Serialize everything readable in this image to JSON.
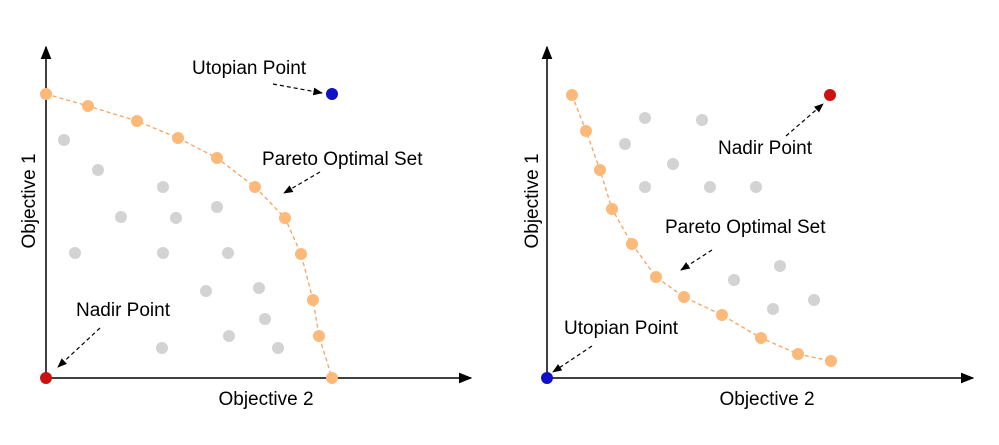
{
  "colors": {
    "axis": "#000000",
    "pareto": "#FDB97A",
    "pareto_line": "#F7A35C",
    "dominated": "#D3D3D3",
    "utopian": "#1010C8",
    "nadir": "#CC1111",
    "arrow": "#000000"
  },
  "left_panel": {
    "ylabel": "Objective 1",
    "xlabel": "Objective 2",
    "pareto_label": "Pareto Optimal Set",
    "utopian_label": "Utopian Point",
    "nadir_label": "Nadir Point"
  },
  "right_panel": {
    "ylabel": "Objective 1",
    "xlabel": "Objective 2",
    "pareto_label": "Pareto Optimal Set",
    "utopian_label": "Utopian Point",
    "nadir_label": "Nadir Point"
  }
}
